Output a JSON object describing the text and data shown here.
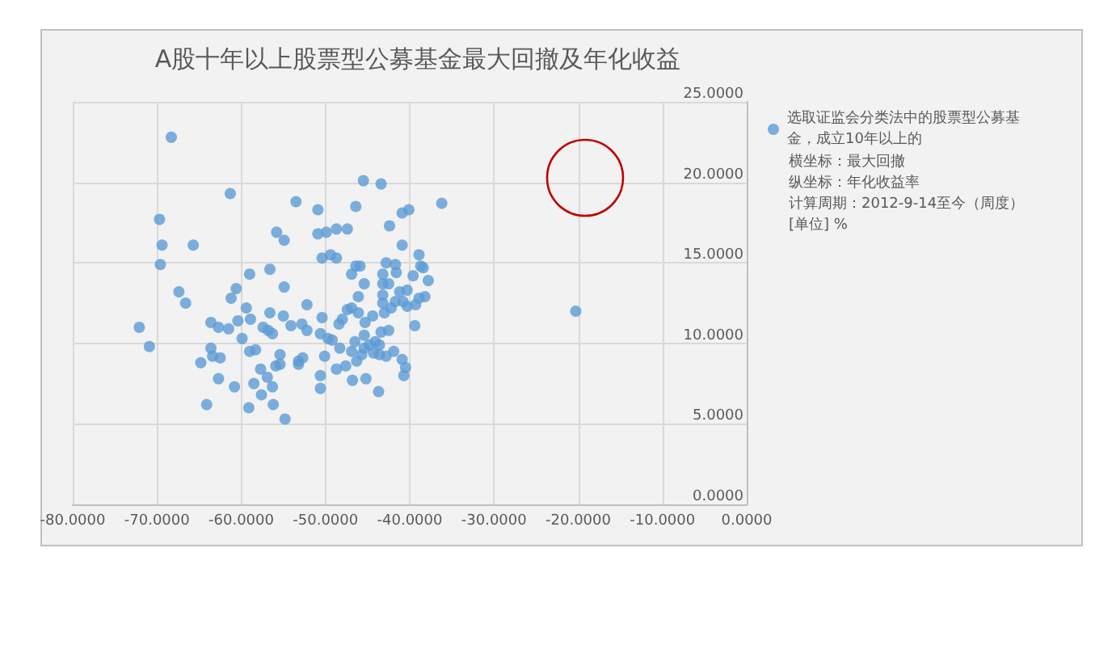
{
  "chart_data": {
    "type": "scatter",
    "title": "A股十年以上股票型公募基金最大回撤及年化收益",
    "xlim": [
      -80,
      0
    ],
    "xticks": [
      {
        "value": -80,
        "label": "-80.0000"
      },
      {
        "value": -70,
        "label": "-70.0000"
      },
      {
        "value": -60,
        "label": "-60.0000"
      },
      {
        "value": -50,
        "label": "-50.0000"
      },
      {
        "value": -40,
        "label": "-40.0000"
      },
      {
        "value": -30,
        "label": "-30.0000"
      },
      {
        "value": -20,
        "label": "-20.0000"
      },
      {
        "value": -10,
        "label": "-10.0000"
      },
      {
        "value": 0,
        "label": "0.0000"
      }
    ],
    "ylim": [
      0,
      25
    ],
    "yticks": [
      {
        "value": 0,
        "label": "0.0000"
      },
      {
        "value": 5,
        "label": "5.0000"
      },
      {
        "value": 10,
        "label": "10.0000"
      },
      {
        "value": 15,
        "label": "15.0000"
      },
      {
        "value": 20,
        "label": "20.0000"
      },
      {
        "value": 25,
        "label": "25.0000"
      }
    ],
    "grid": true,
    "legend": "right",
    "marker": "circle",
    "annotations": [
      "横坐标：最大回撤",
      "纵坐标：年化收益率",
      "计算周期：2012-9-14至今（周度）",
      "[单位] %"
    ],
    "series": [
      {
        "name": "选取证监会分类法中的股票型公募基金，成立10年以上的",
        "color": "#5b9bd5",
        "x": [
          -68.3,
          -69.7,
          -69.4,
          -69.6,
          -65.7,
          -61.3,
          -67.4,
          -66.6,
          -72.1,
          -70.9,
          -63.6,
          -62.7,
          -61.5,
          -60.4,
          -61.2,
          -60.6,
          -59.0,
          -59.4,
          -58.9,
          -59.9,
          -63.6,
          -63.4,
          -62.5,
          -64.8,
          -62.7,
          -60.8,
          -64.1,
          -59.1,
          -59.0,
          -58.3,
          -57.7,
          -58.5,
          -57.6,
          -56.9,
          -56.3,
          -56.2,
          -54.8,
          -55.9,
          -55.4,
          -55.4,
          -57.4,
          -56.8,
          -56.3,
          -56.6,
          -56.6,
          -55.8,
          -54.9,
          -54.9,
          -55.0,
          -54.1,
          -53.5,
          -53.2,
          -53.2,
          -52.7,
          -52.8,
          -52.2,
          -52.2,
          -50.9,
          -50.9,
          -49.9,
          -50.6,
          -50.6,
          -50.1,
          -50.6,
          -50.4,
          -49.7,
          -49.2,
          -50.4,
          -49.4,
          -48.7,
          -48.7,
          -47.4,
          -46.4,
          -45.5,
          -43.4,
          -48.7,
          -48.3,
          -48.4,
          -48.0,
          -47.6,
          -47.4,
          -46.9,
          -46.9,
          -46.4,
          -45.9,
          -45.4,
          -46.1,
          -46.8,
          -45.2,
          -43.7,
          -46.9,
          -46.3,
          -45.7,
          -45.4,
          -44.8,
          -44.1,
          -43.6,
          -43.4,
          -42.5,
          -44.4,
          -45.3,
          -45.4,
          -46.1,
          -46.5,
          -44.3,
          -43.6,
          -42.8,
          -41.9,
          -40.9,
          -40.5,
          -40.7,
          -43.2,
          -43.2,
          -43.0,
          -42.2,
          -41.7,
          -41.2,
          -40.8,
          -40.3,
          -40.3,
          -43.2,
          -42.5,
          -43.2,
          -42.8,
          -41.7,
          -41.6,
          -40.9,
          -42.4,
          -40.9,
          -40.1,
          -38.9,
          -38.7,
          -38.4,
          -39.6,
          -37.8,
          -39.3,
          -38.9,
          -38.2,
          -39.4,
          -36.2,
          -20.3
        ],
        "values": [
          22.8,
          17.7,
          16.1,
          14.9,
          16.1,
          19.3,
          13.2,
          12.5,
          11.0,
          9.8,
          11.3,
          11.0,
          10.9,
          11.4,
          12.8,
          13.4,
          14.3,
          12.2,
          11.5,
          10.3,
          9.7,
          9.2,
          9.1,
          8.8,
          7.8,
          7.3,
          6.2,
          6.0,
          9.5,
          9.6,
          8.4,
          7.5,
          6.8,
          7.9,
          7.3,
          6.2,
          5.3,
          8.6,
          8.7,
          9.3,
          11.0,
          10.8,
          10.6,
          11.9,
          14.6,
          16.9,
          16.4,
          13.5,
          11.7,
          11.1,
          18.8,
          8.7,
          8.9,
          9.1,
          11.2,
          10.8,
          12.4,
          18.3,
          16.8,
          16.9,
          7.2,
          8.0,
          9.2,
          10.6,
          11.6,
          10.3,
          10.2,
          15.3,
          15.5,
          15.3,
          17.1,
          17.1,
          18.5,
          20.1,
          19.9,
          8.4,
          9.7,
          11.2,
          11.5,
          8.6,
          12.1,
          12.2,
          14.3,
          14.8,
          14.8,
          13.7,
          12.9,
          7.7,
          7.8,
          7.0,
          9.5,
          8.9,
          9.3,
          9.7,
          9.9,
          10.1,
          9.9,
          10.7,
          10.8,
          11.7,
          11.3,
          10.5,
          11.9,
          10.1,
          9.4,
          9.3,
          9.2,
          9.5,
          9.0,
          8.5,
          8.0,
          13.0,
          12.5,
          11.9,
          12.2,
          12.6,
          13.2,
          12.6,
          13.3,
          12.3,
          13.7,
          13.7,
          14.3,
          15.0,
          14.9,
          14.4,
          16.1,
          17.3,
          18.1,
          18.3,
          15.5,
          14.8,
          14.7,
          14.2,
          13.9,
          12.4,
          12.8,
          12.9,
          11.1,
          18.7,
          12.0
        ]
      }
    ]
  }
}
